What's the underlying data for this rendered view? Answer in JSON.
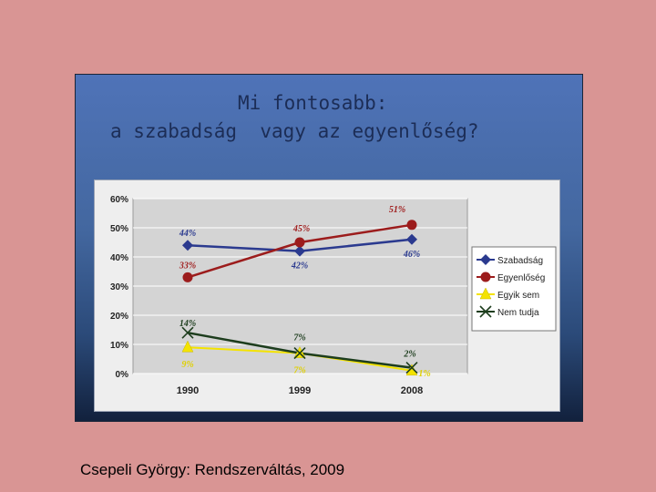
{
  "slide": {
    "title_line1": "Mi fontosabb:",
    "title_line2": "a szabadság  vagy az egyenlőség?",
    "caption": "Csepeli György: Rendszerváltás, 2009"
  },
  "colors": {
    "background": "#d99594",
    "plot_bg": "#d4d4d4",
    "szabadsag": "#2b3a8f",
    "egyenloseg": "#9c1c1c",
    "egyik_sem": "#f4e300",
    "nem_tudja": "#1d3d1d",
    "label_red": "#a02020",
    "label_blue": "#2b3a8f",
    "label_dark": "#1d3d1d",
    "label_yellow": "#e0d000"
  },
  "chart_data": {
    "type": "line",
    "title": "",
    "xlabel": "",
    "ylabel": "",
    "categories": [
      "1990",
      "1999",
      "2008"
    ],
    "ylim": [
      0,
      60
    ],
    "yticks": [
      "0%",
      "10%",
      "20%",
      "30%",
      "40%",
      "50%",
      "60%"
    ],
    "grid": true,
    "legend_position": "right",
    "series": [
      {
        "name": "Szabadság",
        "values": [
          44,
          42,
          46
        ],
        "labels": [
          "44%",
          "42%",
          "46%"
        ],
        "marker": "diamond",
        "color": "#2b3a8f",
        "label_color": "#2b3a8f"
      },
      {
        "name": "Egyenlőség",
        "values": [
          33,
          45,
          51
        ],
        "labels": [
          "33%",
          "45%",
          "51%"
        ],
        "marker": "circle",
        "color": "#9c1c1c",
        "label_color": "#a02020"
      },
      {
        "name": "Egyik sem",
        "values": [
          9,
          7,
          1
        ],
        "labels": [
          "9%",
          "7%",
          "1%"
        ],
        "marker": "triangle",
        "color": "#f4e300",
        "label_color": "#e0d000"
      },
      {
        "name": "Nem tudja",
        "values": [
          14,
          7,
          2
        ],
        "labels": [
          "14%",
          "7%",
          "2%"
        ],
        "marker": "x",
        "color": "#1d3d1d",
        "label_color": "#1d3d1d"
      }
    ]
  }
}
